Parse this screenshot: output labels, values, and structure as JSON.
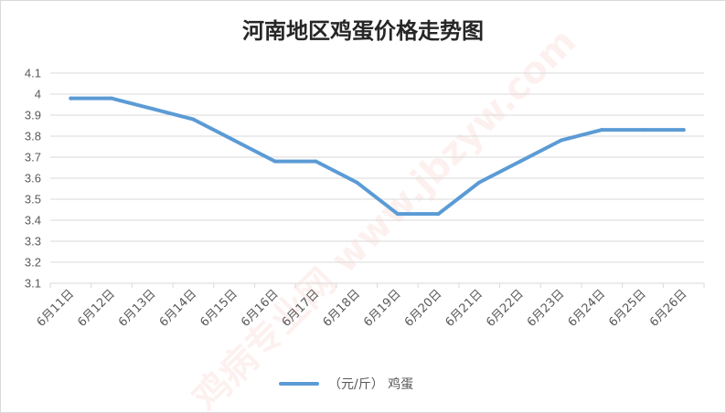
{
  "chart_data": {
    "type": "line",
    "title": "河南地区鸡蛋价格走势图",
    "categories": [
      "6月11日",
      "6月12日",
      "6月13日",
      "6月14日",
      "6月15日",
      "6月16日",
      "6月17日",
      "6月18日",
      "6月19日",
      "6月20日",
      "6月21日",
      "6月22日",
      "6月23日",
      "6月24日",
      "6月25日",
      "6月26日"
    ],
    "series": [
      {
        "name": "（元/斤） 鸡蛋",
        "values": [
          3.98,
          3.98,
          3.93,
          3.88,
          3.78,
          3.68,
          3.68,
          3.58,
          3.43,
          3.43,
          3.58,
          3.68,
          3.78,
          3.83,
          3.83,
          3.83
        ]
      }
    ],
    "y_ticks": [
      "3.1",
      "3.2",
      "3.3",
      "3.4",
      "3.5",
      "3.6",
      "3.7",
      "3.8",
      "3.9",
      "4",
      "4.1"
    ],
    "ylim": [
      3.1,
      4.1
    ],
    "grid": true,
    "legend_position": "bottom",
    "colors": {
      "series": "#5b9bd5",
      "grid": "#d9d9d9"
    }
  },
  "watermark": "鸡病专业网 www.jbzyw.com"
}
